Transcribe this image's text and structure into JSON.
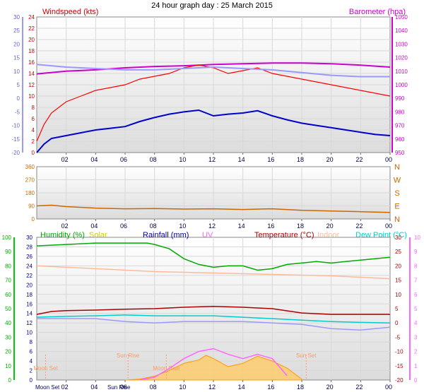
{
  "title": "24 hour graph day : 25 March 2015",
  "chart_data": [
    {
      "type": "line",
      "name": "wind-pressure",
      "labels": {
        "left": "Windspeed (kts)",
        "right": "Barometer (hpa)"
      },
      "ylim_windspeed": [
        0,
        24
      ],
      "ylim_barometer": [
        950,
        1050
      ],
      "ylim_temperature": [
        -20,
        30
      ],
      "windspeed_ticks": [
        "24",
        "22",
        "20",
        "18",
        "16",
        "14",
        "12",
        "10",
        "8",
        "6",
        "4",
        "2",
        "0"
      ],
      "barometer_ticks": [
        "1050",
        "1040",
        "1030",
        "1020",
        "1010",
        "1000",
        "990",
        "980",
        "970",
        "960",
        "950"
      ],
      "temperature_ticks": [
        "30",
        "25",
        "20",
        "15",
        "10",
        "5",
        "0",
        "-5",
        "-10",
        "-15",
        "-20"
      ],
      "x_ticks": [
        "02",
        "04",
        "06",
        "08",
        "10",
        "12",
        "14",
        "16",
        "18",
        "20",
        "22",
        "00"
      ],
      "series": [
        {
          "key": "barometer",
          "color": "#cc00cc",
          "axis": "barometer",
          "x": [
            0,
            2,
            4,
            6,
            8,
            10,
            11,
            12,
            14,
            16,
            18,
            20,
            22,
            24
          ],
          "y": [
            1008,
            1010,
            1011,
            1012.5,
            1013.5,
            1014,
            1014.5,
            1015,
            1015.5,
            1016,
            1016,
            1015.5,
            1014.5,
            1013
          ]
        },
        {
          "key": "wind_gust",
          "color": "#ff0000",
          "axis": "windspeed",
          "x": [
            0,
            0.5,
            1,
            2,
            3,
            4,
            5,
            6,
            7,
            8,
            9,
            10,
            11,
            12,
            13,
            14,
            15,
            16,
            17,
            18,
            19,
            20,
            21,
            22,
            23,
            24
          ],
          "y": [
            2,
            5,
            7,
            9,
            10,
            11,
            11.5,
            12,
            13,
            13.5,
            14,
            15,
            15.5,
            15,
            14,
            14.5,
            15,
            14,
            13.5,
            13,
            12.5,
            12,
            11.5,
            11,
            10.5,
            10
          ]
        },
        {
          "key": "wind_avg",
          "color": "#0000cc",
          "axis": "windspeed",
          "x": [
            0,
            0.5,
            1,
            2,
            3,
            4,
            5,
            6,
            7,
            8,
            9,
            10,
            11,
            12,
            13,
            14,
            15,
            16,
            17,
            18,
            19,
            20,
            21,
            22,
            23,
            24
          ],
          "y": [
            0,
            1.5,
            2.5,
            3,
            3.5,
            4,
            4.3,
            4.6,
            5.5,
            6.2,
            6.8,
            7.2,
            7.5,
            6.5,
            6.8,
            7,
            7.4,
            6.5,
            5.8,
            5.2,
            4.8,
            4.4,
            4,
            3.6,
            3.2,
            3
          ]
        },
        {
          "key": "temperature",
          "color": "#9999ff",
          "axis": "temperature",
          "x": [
            0,
            2,
            4,
            6,
            8,
            10,
            12,
            14,
            16,
            18,
            20,
            22,
            24
          ],
          "y": [
            12.5,
            11.5,
            11,
            10.5,
            10.5,
            11,
            11.5,
            11,
            10.5,
            9.5,
            8.5,
            8,
            8
          ]
        }
      ]
    },
    {
      "type": "scatter",
      "name": "wind-direction",
      "labels": {
        "right": [
          "N",
          "W",
          "S",
          "E",
          "N"
        ]
      },
      "ylim": [
        0,
        360
      ],
      "y_ticks": [
        "360",
        "270",
        "180",
        "90",
        "0"
      ],
      "x_ticks": [
        "02",
        "04",
        "06",
        "08",
        "10",
        "12",
        "14",
        "16",
        "18",
        "20",
        "22",
        "00"
      ],
      "series": [
        {
          "key": "direction",
          "color": "#cc6600",
          "x": [
            0,
            1,
            2,
            4,
            6,
            8,
            10,
            12,
            14,
            16,
            18,
            20,
            22,
            24
          ],
          "y": [
            90,
            95,
            85,
            75,
            70,
            72,
            68,
            70,
            65,
            70,
            60,
            55,
            50,
            45
          ]
        }
      ]
    },
    {
      "type": "line",
      "name": "multi-sensor",
      "labels": {
        "humidity": "Humidity (%)",
        "solar": "Solar",
        "rainfall": "Rainfall (mm)",
        "uv": "UV",
        "temperature": "Temperature (°C)",
        "indoor": "Indoor",
        "dewpoint": "Dew Point (°C)"
      },
      "label_colors": {
        "humidity": "#00aa00",
        "solar": "#cccc00",
        "rainfall": "#0000aa",
        "uv": "#ff66ff",
        "temperature": "#aa0000",
        "indoor": "#ffbb99",
        "dewpoint": "#00cccc"
      },
      "ylim_humidity": [
        0,
        100
      ],
      "ylim_rainfall": [
        0,
        30
      ],
      "ylim_temperature": [
        -20,
        30
      ],
      "ylim_uv": [
        0,
        10
      ],
      "humidity_ticks": [
        "100",
        "90",
        "80",
        "70",
        "60",
        "50",
        "40",
        "30",
        "20",
        "10",
        "0"
      ],
      "rainfall_ticks": [
        "30",
        "28",
        "26",
        "24",
        "22",
        "20",
        "18",
        "16",
        "14",
        "12",
        "10",
        "8",
        "6",
        "4",
        "2",
        "0"
      ],
      "temperature_ticks": [
        "30",
        "25",
        "20",
        "15",
        "10",
        "5",
        "0",
        "-5",
        "-10",
        "-15",
        "-20"
      ],
      "uv_ticks": [
        "10",
        "9",
        "8",
        "7",
        "6",
        "5",
        "4",
        "3",
        "2",
        "1",
        "0"
      ],
      "x_ticks": [
        "02",
        "04",
        "06",
        "08",
        "10",
        "12",
        "14",
        "16",
        "18",
        "20",
        "22",
        "00"
      ],
      "event_labels": [
        "Moon Set",
        "Sun Rise",
        "Moon Rise",
        "Sun Set"
      ],
      "event_hours": [
        0.6,
        6.2,
        8.8,
        18.3
      ],
      "x_axis_event_labels": [
        "Moon Set",
        "Sun Rise"
      ],
      "series": [
        {
          "key": "humidity",
          "color": "#00aa00",
          "axis": "humidity",
          "x": [
            0,
            2,
            4,
            6,
            7.5,
            8,
            9,
            10,
            11,
            12,
            13,
            14,
            15,
            16,
            17,
            18,
            19,
            20,
            21,
            22,
            23,
            24
          ],
          "y": [
            94,
            95,
            96,
            96,
            96,
            95,
            92,
            85,
            81,
            79,
            80,
            80,
            77,
            78,
            81,
            82,
            83,
            82,
            83,
            84,
            85,
            86
          ]
        },
        {
          "key": "indoor",
          "color": "#ffbb99",
          "axis": "temperature",
          "x": [
            0,
            4,
            8,
            12,
            16,
            20,
            24
          ],
          "y": [
            20,
            19,
            18,
            17.5,
            17,
            16.5,
            15.5
          ]
        },
        {
          "key": "temperature",
          "color": "#aa0000",
          "axis": "temperature",
          "x": [
            0,
            1,
            2,
            4,
            6,
            8,
            10,
            12,
            14,
            16,
            18,
            20,
            22,
            24
          ],
          "y": [
            3,
            4,
            4.3,
            4.5,
            4.8,
            5,
            5.5,
            5.8,
            5.5,
            5,
            3.5,
            3,
            3,
            3
          ]
        },
        {
          "key": "dewpoint",
          "color": "#00cccc",
          "axis": "temperature",
          "x": [
            0,
            2,
            4,
            6,
            8,
            10,
            12,
            14,
            16,
            18,
            20,
            22,
            24
          ],
          "y": [
            2,
            2.3,
            2.5,
            2.8,
            2.5,
            2.5,
            2.5,
            2,
            1.5,
            1,
            0.5,
            0.2,
            0
          ]
        },
        {
          "key": "feels_like",
          "color": "#9999ff",
          "axis": "temperature",
          "x": [
            0,
            2,
            4,
            6,
            8,
            10,
            12,
            14,
            16,
            18,
            20,
            22,
            24
          ],
          "y": [
            1.5,
            1.5,
            1.5,
            0.5,
            0,
            0.5,
            0.5,
            0.5,
            0,
            -0.5,
            -2,
            -2.5,
            -1.5
          ]
        },
        {
          "key": "solar",
          "color": "#ffaa33",
          "axis": "rainfall",
          "x": [
            6,
            7,
            8,
            9,
            10,
            11,
            11.5,
            12,
            13,
            14,
            15,
            16,
            17,
            18
          ],
          "y": [
            0,
            0.2,
            0.8,
            2,
            3.5,
            4.2,
            5.2,
            4.5,
            2.8,
            3.5,
            5,
            4,
            2.5,
            0.2
          ]
        },
        {
          "key": "uv",
          "color": "#ff66ff",
          "axis": "uv",
          "x": [
            7,
            8,
            9,
            10,
            11,
            12,
            13,
            14,
            15,
            16,
            17
          ],
          "y": [
            0,
            0.2,
            0.8,
            1.5,
            2,
            2.2,
            1.8,
            1.5,
            1.8,
            1.5,
            0.3
          ]
        }
      ]
    }
  ]
}
